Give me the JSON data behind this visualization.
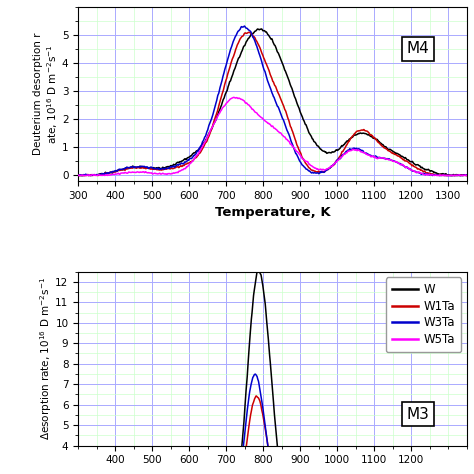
{
  "colors": {
    "W": "#000000",
    "W1Ta": "#cc0000",
    "W3Ta": "#0000cc",
    "W5Ta": "#ff00ff"
  },
  "top_panel": {
    "label": "M4",
    "ylabel": "Deuterium desorption rate, 10¹⁶ D m⁻²s⁻¹",
    "xlabel": "Temperature, K",
    "xlim": [
      300,
      1350
    ],
    "ylim": [
      -0.2,
      6.0
    ],
    "yticks": [
      0,
      1,
      2,
      3,
      4,
      5
    ],
    "xticks": [
      300,
      400,
      500,
      600,
      700,
      800,
      900,
      1000,
      1100,
      1200,
      1300
    ]
  },
  "bottom_panel": {
    "label": "M3",
    "ylabel": "Desorption rate, 10¹⁶ D m⁻²s⁻¹",
    "xlim": [
      300,
      1350
    ],
    "ylim": [
      4,
      12.5
    ],
    "yticks": [
      4,
      5,
      6,
      7,
      8,
      9,
      10,
      11,
      12
    ],
    "xticks": [
      400,
      500,
      600,
      700,
      800,
      900,
      1000,
      1100,
      1200
    ]
  },
  "legend_entries": [
    "W",
    "W1Ta",
    "W3Ta",
    "W5Ta"
  ],
  "background_color": "#ffffff",
  "grid_color_major": "#aaaaff",
  "grid_color_minor": "#ccffcc"
}
